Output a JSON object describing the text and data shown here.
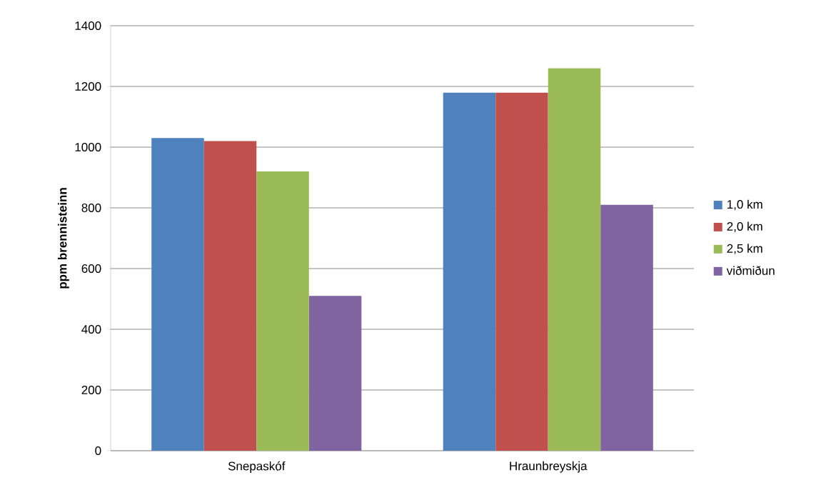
{
  "chart_data": {
    "type": "bar",
    "ylabel": "ppm brennisteinn",
    "categories": [
      "Snepaskóf",
      "Hraunbreyskja"
    ],
    "series": [
      {
        "name": "1,0 km",
        "color": "#4f81bd",
        "values": [
          1030,
          1180
        ]
      },
      {
        "name": "2,0 km",
        "color": "#c0504d",
        "values": [
          1020,
          1180
        ]
      },
      {
        "name": "2,5 km",
        "color": "#9bbb59",
        "values": [
          920,
          1260
        ]
      },
      {
        "name": "viðmiðun",
        "color": "#8064a2",
        "values": [
          510,
          810
        ]
      }
    ],
    "ylim": [
      0,
      1400
    ],
    "yticks": [
      0,
      200,
      400,
      600,
      800,
      1000,
      1200,
      1400
    ],
    "grid": "y",
    "legend": "right"
  }
}
